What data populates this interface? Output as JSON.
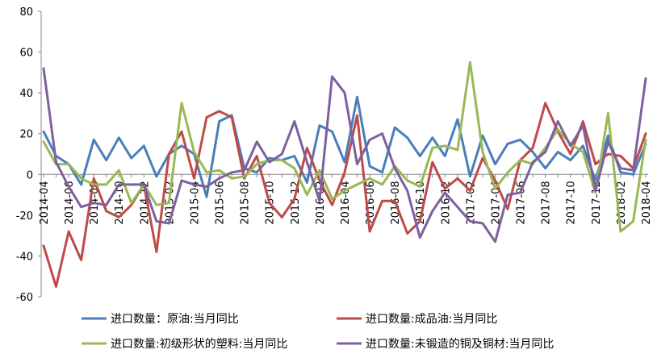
{
  "chart_data": {
    "type": "line",
    "title": "",
    "xlabel": "",
    "ylabel": "",
    "ylim": [
      -60,
      80
    ],
    "yticks": [
      -60,
      -40,
      -20,
      0,
      20,
      40,
      60,
      80
    ],
    "grid": false,
    "legend_position": "bottom",
    "x": [
      "2014-04",
      "2014-05",
      "2014-06",
      "2014-07",
      "2014-08",
      "2014-09",
      "2014-10",
      "2014-11",
      "2014-12",
      "2015-01",
      "2015-02",
      "2015-03",
      "2015-04",
      "2015-05",
      "2015-06",
      "2015-07",
      "2015-08",
      "2015-09",
      "2015-10",
      "2015-11",
      "2015-12",
      "2016-01",
      "2016-02",
      "2016-03",
      "2016-04",
      "2016-05",
      "2016-06",
      "2016-07",
      "2016-08",
      "2016-09",
      "2016-10",
      "2016-11",
      "2016-12",
      "2017-01",
      "2017-02",
      "2017-03",
      "2017-04",
      "2017-05",
      "2017-06",
      "2017-07",
      "2017-08",
      "2017-09",
      "2017-10",
      "2017-11",
      "2017-12",
      "2018-01",
      "2018-02",
      "2018-03",
      "2018-04"
    ],
    "xtick_labels": [
      "2014-04",
      "2014-06",
      "2014-08",
      "2014-10",
      "2014-12",
      "2015-02",
      "2015-04",
      "2015-06",
      "2015-08",
      "2015-10",
      "2015-12",
      "2016-02",
      "2016-04",
      "2016-06",
      "2016-08",
      "2016-10",
      "2016-12",
      "2017-02",
      "2017-04",
      "2017-06",
      "2017-08",
      "2017-10",
      "2017-12",
      "2018-02",
      "2018-04"
    ],
    "series": [
      {
        "name": "进口数量：原油:当月同比",
        "color": "#4a7ebb",
        "values": [
          21,
          9,
          5,
          -5,
          17,
          7,
          18,
          8,
          14,
          -1,
          10,
          14,
          10,
          -11,
          26,
          29,
          3,
          1,
          8,
          7,
          9,
          -4,
          24,
          21,
          6,
          38,
          4,
          1,
          23,
          18,
          9,
          18,
          9,
          27,
          -1,
          19,
          5,
          15,
          17,
          11,
          3,
          11,
          7,
          14,
          -3,
          19,
          1,
          0,
          15
        ]
      },
      {
        "name": "进口数量:成品油:当月同比",
        "color": "#be4b48",
        "values": [
          -35,
          -55,
          -28,
          -42,
          -2,
          -18,
          -21,
          -15,
          -5,
          -38,
          10,
          21,
          -2,
          28,
          31,
          28,
          -2,
          9,
          -14,
          -21,
          -12,
          13,
          -3,
          -15,
          1,
          29,
          -28,
          -13,
          -13,
          -29,
          -23,
          6,
          -7,
          -2,
          -8,
          8,
          -3,
          -17,
          7,
          13,
          35,
          21,
          10,
          26,
          5,
          10,
          9,
          3,
          20
        ]
      },
      {
        "name": "进口数量:初级形状的塑料:当月同比",
        "color": "#98b954",
        "values": [
          16,
          5,
          5,
          -2,
          -5,
          -5,
          2,
          -14,
          -5,
          -15,
          -14,
          35,
          11,
          1,
          2,
          -2,
          -1,
          5,
          7,
          7,
          3,
          -10,
          2,
          -12,
          -8,
          -5,
          -2,
          -5,
          4,
          -3,
          -6,
          13,
          14,
          12,
          55,
          11,
          -7,
          1,
          7,
          5,
          13,
          22,
          15,
          11,
          -9,
          30,
          -28,
          -23,
          17
        ]
      },
      {
        "name": "进口数量:未锻造的铜及铜材:当月同比",
        "color": "#7d60a0",
        "values": [
          52,
          6,
          -6,
          -16,
          -14,
          -15,
          -5,
          -5,
          -5,
          -23,
          -24,
          -3,
          -5,
          -6,
          -2,
          1,
          2,
          16,
          6,
          10,
          26,
          6,
          -13,
          48,
          40,
          5,
          17,
          20,
          3,
          -8,
          -31,
          -18,
          -9,
          -16,
          -23,
          -24,
          -33,
          -10,
          -9,
          6,
          11,
          26,
          14,
          24,
          -8,
          16,
          3,
          2,
          47
        ]
      }
    ]
  }
}
